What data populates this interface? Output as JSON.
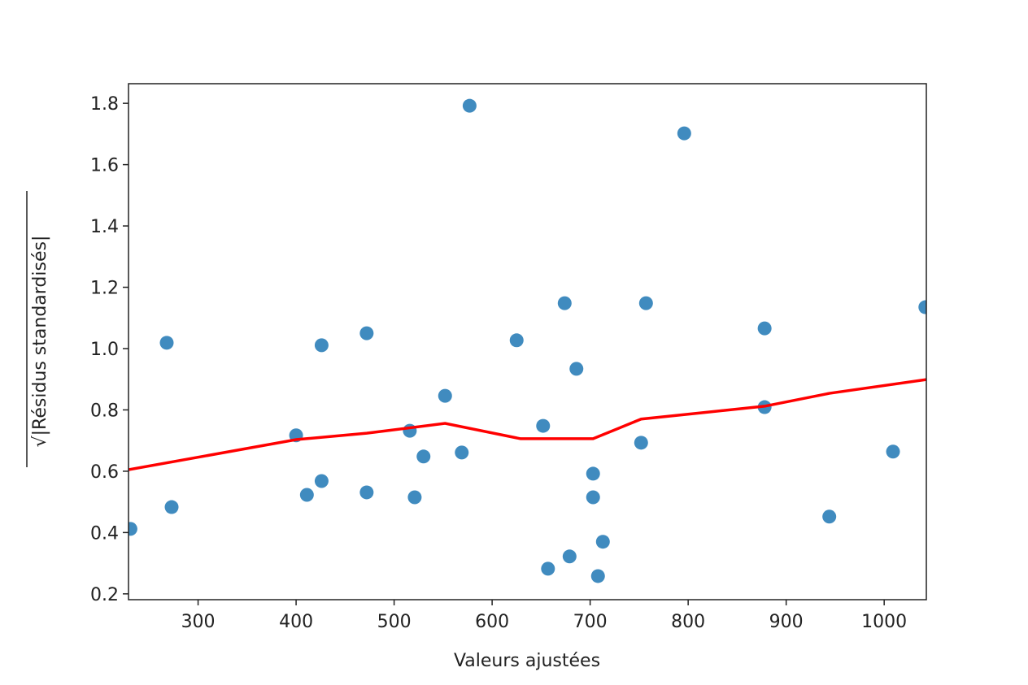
{
  "chart_data": {
    "type": "scatter",
    "xlabel": "Valeurs ajustées",
    "ylabel": "√|Résidus standardisés|",
    "x": [
      231,
      268,
      273,
      400,
      411,
      426,
      426,
      472,
      472,
      516,
      521,
      530,
      552,
      569,
      577,
      625,
      652,
      657,
      674,
      679,
      686,
      703,
      703,
      708,
      713,
      752,
      757,
      796,
      878,
      878,
      944,
      1009,
      1042
    ],
    "y": [
      0.412,
      1.019,
      0.483,
      0.717,
      0.523,
      0.568,
      1.011,
      1.05,
      0.531,
      0.732,
      0.515,
      0.648,
      0.846,
      0.661,
      1.792,
      1.027,
      0.748,
      0.282,
      1.148,
      0.322,
      0.934,
      0.592,
      0.515,
      0.258,
      0.37,
      0.693,
      1.148,
      1.702,
      1.066,
      0.809,
      0.452,
      0.664,
      1.135
    ],
    "color": "#1f77b4",
    "line": {
      "color": "#ff0000",
      "x": [
        229,
        400,
        472,
        552,
        629,
        652,
        703,
        752,
        878,
        944,
        1043
      ],
      "y": [
        0.605,
        0.703,
        0.724,
        0.756,
        0.706,
        0.706,
        0.706,
        0.77,
        0.812,
        0.854,
        0.899
      ]
    },
    "xlim": [
      229,
      1043
    ],
    "ylim": [
      0.181,
      1.864
    ],
    "xticks": [
      300,
      400,
      500,
      600,
      700,
      800,
      900,
      1000
    ],
    "yticks": [
      0.2,
      0.4,
      0.6,
      0.8,
      {
        "value": 1,
        "label": "1.0"
      },
      1.2,
      1.4,
      1.6,
      1.8
    ]
  }
}
